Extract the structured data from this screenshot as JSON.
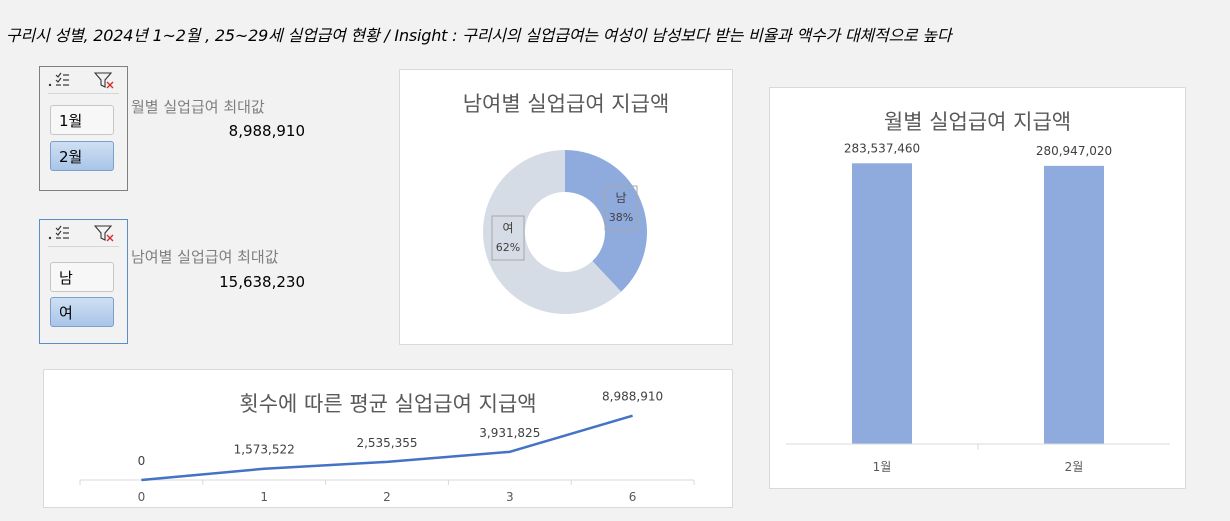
{
  "header": {
    "title": "구리시 성별, 2024년 1~2월 , 25~29세 실업급여 현황 / Insight : 구리시의 실업급여는 여성이 남성보다 받는 비율과 액수가 대체적으로 높다"
  },
  "slicer_month": {
    "items": [
      {
        "label": "1월",
        "selected": false
      },
      {
        "label": "2월",
        "selected": true
      }
    ]
  },
  "slicer_gender": {
    "items": [
      {
        "label": "남",
        "selected": false
      },
      {
        "label": "여",
        "selected": true
      }
    ]
  },
  "kpi_month": {
    "label": "월별 실업급여 최대값",
    "value": "8,988,910"
  },
  "kpi_gender": {
    "label": "남여별 실업급여 최대값",
    "value": "15,638,230"
  },
  "colors": {
    "blue": "#8faadc",
    "gray": "#d6dce5",
    "line": "#4472c4"
  },
  "chart_data": [
    {
      "type": "pie",
      "title": "남여별 실업급여 지급액",
      "categories": [
        "남",
        "여"
      ],
      "values": [
        38,
        62
      ],
      "labels": [
        "남\n38%",
        "여\n62%"
      ],
      "donut": true
    },
    {
      "type": "bar",
      "title": "월별 실업급여 지급액",
      "categories": [
        "1월",
        "2월"
      ],
      "values": [
        283537460,
        280947020
      ],
      "data_labels": [
        "283,537,460",
        "280,947,020"
      ],
      "ylim": [
        0,
        300000000
      ]
    },
    {
      "type": "line",
      "title": "횟수에 따른 평균 실업급여 지급액",
      "categories": [
        "0",
        "1",
        "2",
        "3",
        "6"
      ],
      "values": [
        0,
        1573522,
        2535355,
        3931825,
        8988910
      ],
      "data_labels": [
        "0",
        "1,573,522",
        "2,535,355",
        "3,931,825",
        "8,988,910"
      ],
      "ylim": [
        0,
        9500000
      ]
    }
  ]
}
